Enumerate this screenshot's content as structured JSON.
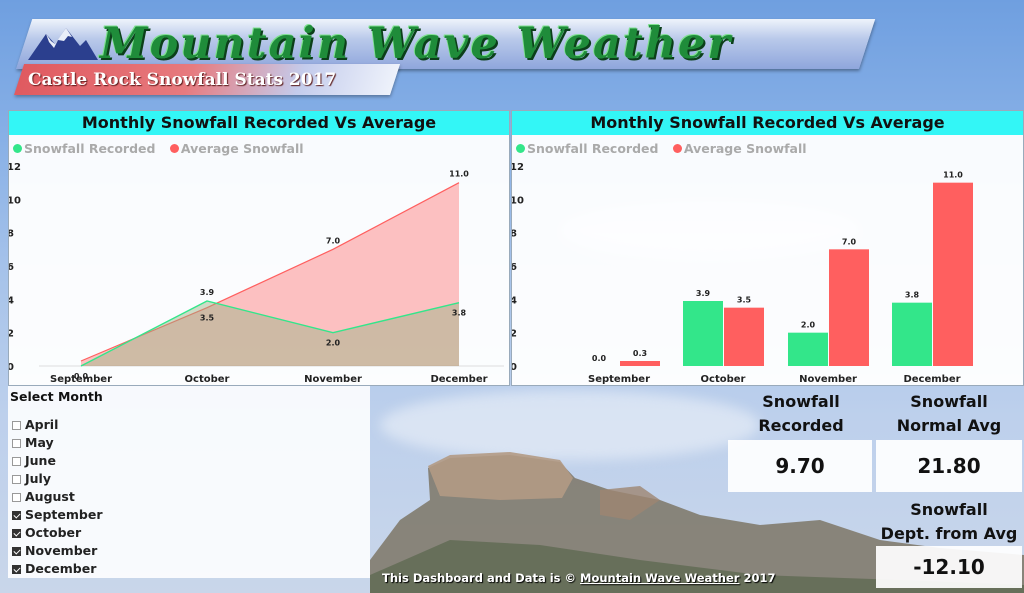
{
  "header": {
    "logo_text": "Mountain Wave Weather",
    "subtitle": "Castle Rock Snowfall Stats 2017"
  },
  "colors": {
    "recorded": "#33e68a",
    "average": "#ff5f5f",
    "title_bar": "#33f6f6"
  },
  "chart_data": [
    {
      "type": "area",
      "title": "Monthly Snowfall Recorded Vs Average",
      "categories": [
        "September",
        "October",
        "November",
        "December"
      ],
      "series": [
        {
          "name": "Snowfall Recorded",
          "values": [
            0.0,
            3.9,
            2.0,
            3.8
          ]
        },
        {
          "name": "Average Snowfall",
          "values": [
            0.3,
            3.5,
            7.0,
            11.0
          ]
        }
      ],
      "ylim": [
        0,
        12
      ],
      "yticks": [
        0,
        2,
        4,
        6,
        8,
        10,
        12
      ],
      "legend": "top-left",
      "grid": false
    },
    {
      "type": "bar",
      "title": "Monthly Snowfall Recorded Vs Average",
      "categories": [
        "September",
        "October",
        "November",
        "December"
      ],
      "series": [
        {
          "name": "Snowfall Recorded",
          "values": [
            0.0,
            3.9,
            2.0,
            3.8
          ]
        },
        {
          "name": "Average Snowfall",
          "values": [
            0.3,
            3.5,
            7.0,
            11.0
          ]
        }
      ],
      "ylim": [
        0,
        12
      ],
      "yticks": [
        0,
        2,
        4,
        6,
        8,
        10,
        12
      ],
      "legend": "top-left",
      "grid": false
    }
  ],
  "selector": {
    "title": "Select Month",
    "months": [
      {
        "label": "April",
        "checked": false
      },
      {
        "label": "May",
        "checked": false
      },
      {
        "label": "June",
        "checked": false
      },
      {
        "label": "July",
        "checked": false
      },
      {
        "label": "August",
        "checked": false
      },
      {
        "label": "September",
        "checked": true
      },
      {
        "label": "October",
        "checked": true
      },
      {
        "label": "November",
        "checked": true
      },
      {
        "label": "December",
        "checked": true
      }
    ]
  },
  "stats": {
    "recorded": {
      "label_line1": "Snowfall",
      "label_line2": "Recorded",
      "value": "9.70"
    },
    "normal": {
      "label_line1": "Snowfall",
      "label_line2": "Normal Avg",
      "value": "21.80"
    },
    "departure": {
      "label_line1": "Snowfall",
      "label_line2": "Dept. from Avg",
      "value": "-12.10"
    }
  },
  "footer": {
    "prefix": "This Dashboard and Data is © ",
    "brand": "Mountain Wave Weather",
    "suffix": " 2017"
  }
}
